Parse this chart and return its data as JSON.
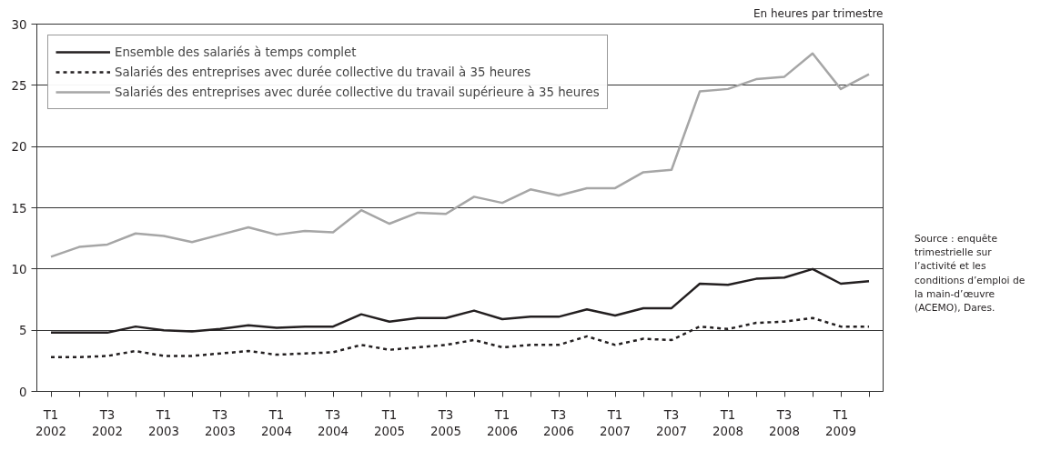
{
  "chart_data": {
    "type": "line",
    "categories": [
      "T1 2002",
      null,
      "T3 2002",
      null,
      "T1 2003",
      null,
      "T3 2003",
      null,
      "T1 2004",
      null,
      "T3 2004",
      null,
      "T1 2005",
      null,
      "T3 2005",
      null,
      "T1 2006",
      null,
      "T3 2006",
      null,
      "T1 2007",
      null,
      "T3 2007",
      null,
      "T1 2008",
      null,
      "T3 2008",
      null,
      "T1 2009",
      null
    ],
    "series": [
      {
        "name": "Ensemble des salariés à temps complet",
        "color": "#231f20",
        "line_style": "solid",
        "values": [
          4.8,
          4.8,
          4.8,
          5.3,
          5.0,
          4.9,
          5.1,
          5.4,
          5.2,
          5.3,
          5.3,
          6.3,
          5.7,
          6.0,
          6.0,
          6.6,
          5.9,
          6.1,
          6.1,
          6.7,
          6.2,
          6.8,
          6.8,
          8.8,
          8.7,
          9.2,
          9.3,
          10.0,
          8.8,
          9.0
        ]
      },
      {
        "name": "Salariés des entreprises avec durée collective du travail à 35 heures",
        "color": "#231f20",
        "line_style": "dashed",
        "values": [
          2.8,
          2.8,
          2.9,
          3.3,
          2.9,
          2.9,
          3.1,
          3.3,
          3.0,
          3.1,
          3.2,
          3.8,
          3.4,
          3.6,
          3.8,
          4.2,
          3.6,
          3.8,
          3.8,
          4.5,
          3.8,
          4.3,
          4.2,
          5.3,
          5.1,
          5.6,
          5.7,
          6.0,
          5.3,
          5.3
        ]
      },
      {
        "name": "Salariés des entreprises avec durée collective du travail supérieure à 35 heures",
        "color": "#a6a6a6",
        "line_style": "solid",
        "values": [
          11.0,
          11.8,
          12.0,
          12.9,
          12.7,
          12.2,
          12.8,
          13.4,
          12.8,
          13.1,
          13.0,
          14.8,
          13.7,
          14.6,
          14.5,
          15.9,
          15.4,
          16.5,
          16.0,
          16.6,
          16.6,
          17.9,
          18.1,
          24.5,
          24.7,
          25.5,
          25.7,
          27.6,
          24.7,
          25.9
        ]
      }
    ],
    "ylim": [
      0,
      30
    ],
    "yticks": [
      0,
      5,
      10,
      15,
      20,
      25,
      30
    ],
    "grid": "y",
    "legend": "top left",
    "annotations": [
      "En heures par trimestre",
      "Source : enquête trimestrielle sur l’activité et les conditions d’emploi de la main-d’œuvre (ACEMO), Dares."
    ]
  }
}
